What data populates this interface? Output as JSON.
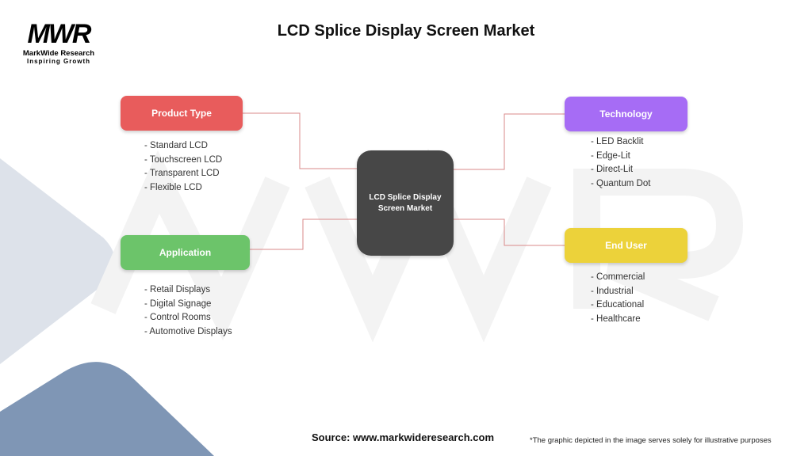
{
  "title": "LCD Splice Display Screen Market",
  "logo": {
    "mark": "MWR",
    "name": "MarkWide Research",
    "tagline": "Inspiring Growth"
  },
  "center": {
    "label_line1": "LCD Splice Display",
    "label_line2": "Screen Market",
    "color": "#474747"
  },
  "categories": [
    {
      "label": "Product Type",
      "color": "#e85c5c",
      "items": [
        "- Standard LCD",
        "- Touchscreen LCD",
        "- Transparent LCD",
        "- Flexible LCD"
      ]
    },
    {
      "label": "Technology",
      "color": "#a66cf5",
      "items": [
        "- LED Backlit",
        "- Edge-Lit",
        "- Direct-Lit",
        "- Quantum Dot"
      ]
    },
    {
      "label": "Application",
      "color": "#6cc46a",
      "items": [
        "- Retail Displays",
        "- Digital Signage",
        "- Control Rooms",
        "- Automotive Displays"
      ]
    },
    {
      "label": "End User",
      "color": "#ecd23a",
      "items": [
        "- Commercial",
        "- Industrial",
        "- Educational",
        "- Healthcare"
      ]
    }
  ],
  "connector_color": "#d9898a",
  "footer": {
    "source": "Source: www.markwideresearch.com",
    "disclaimer": "*The graphic depicted in the image serves solely for illustrative purposes"
  }
}
